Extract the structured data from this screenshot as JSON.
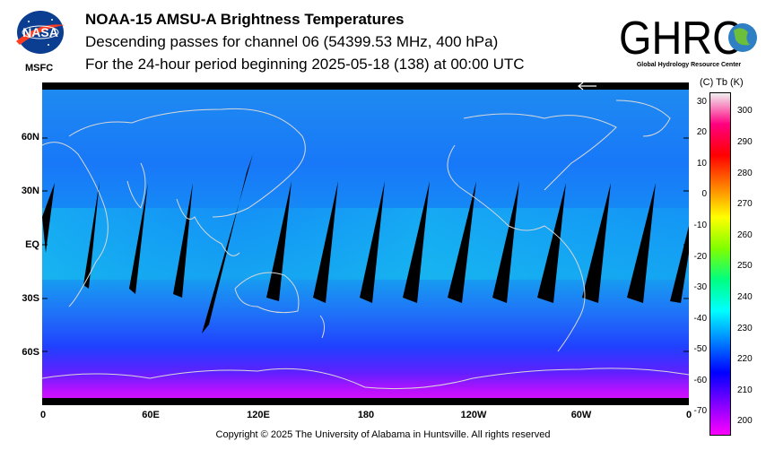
{
  "header": {
    "title": "NOAA-15 AMSU-A Brightness Temperatures",
    "subtitle": "Descending passes for channel 06 (54399.53 MHz, 400 hPa)",
    "period": "For the 24-hour period beginning 2025-05-18 (138) at 00:00 UTC"
  },
  "logos": {
    "nasa_text": "NASA",
    "msfc_text": "MSFC",
    "ghrc_text": "GHRC",
    "ghrc_sub": "Global Hydrology Resource Center"
  },
  "map": {
    "lat_labels": [
      "60N",
      "30N",
      "EQ",
      "30S",
      "60S"
    ],
    "lon_labels": [
      "0",
      "60E",
      "120E",
      "180",
      "120W",
      "60W",
      "0"
    ]
  },
  "colorbar": {
    "title": "(C)  Tb  (K)",
    "celsius": [
      "30",
      "20",
      "10",
      "0",
      "-10",
      "-20",
      "-30",
      "-40",
      "-50",
      "-60",
      "-70"
    ],
    "kelvin": [
      "300",
      "290",
      "280",
      "270",
      "260",
      "250",
      "240",
      "230",
      "220",
      "210",
      "200"
    ],
    "colors": [
      "#ff00ff",
      "#8000ff",
      "#0000ff",
      "#0080ff",
      "#00ffff",
      "#00ff80",
      "#80ff00",
      "#ffff00",
      "#ff8000",
      "#ff0000",
      "#ff0080",
      "#f0f0f0"
    ]
  },
  "footer": {
    "copyright": "Copyright © 2025 The University of Alabama in Huntsville.  All rights reserved"
  }
}
